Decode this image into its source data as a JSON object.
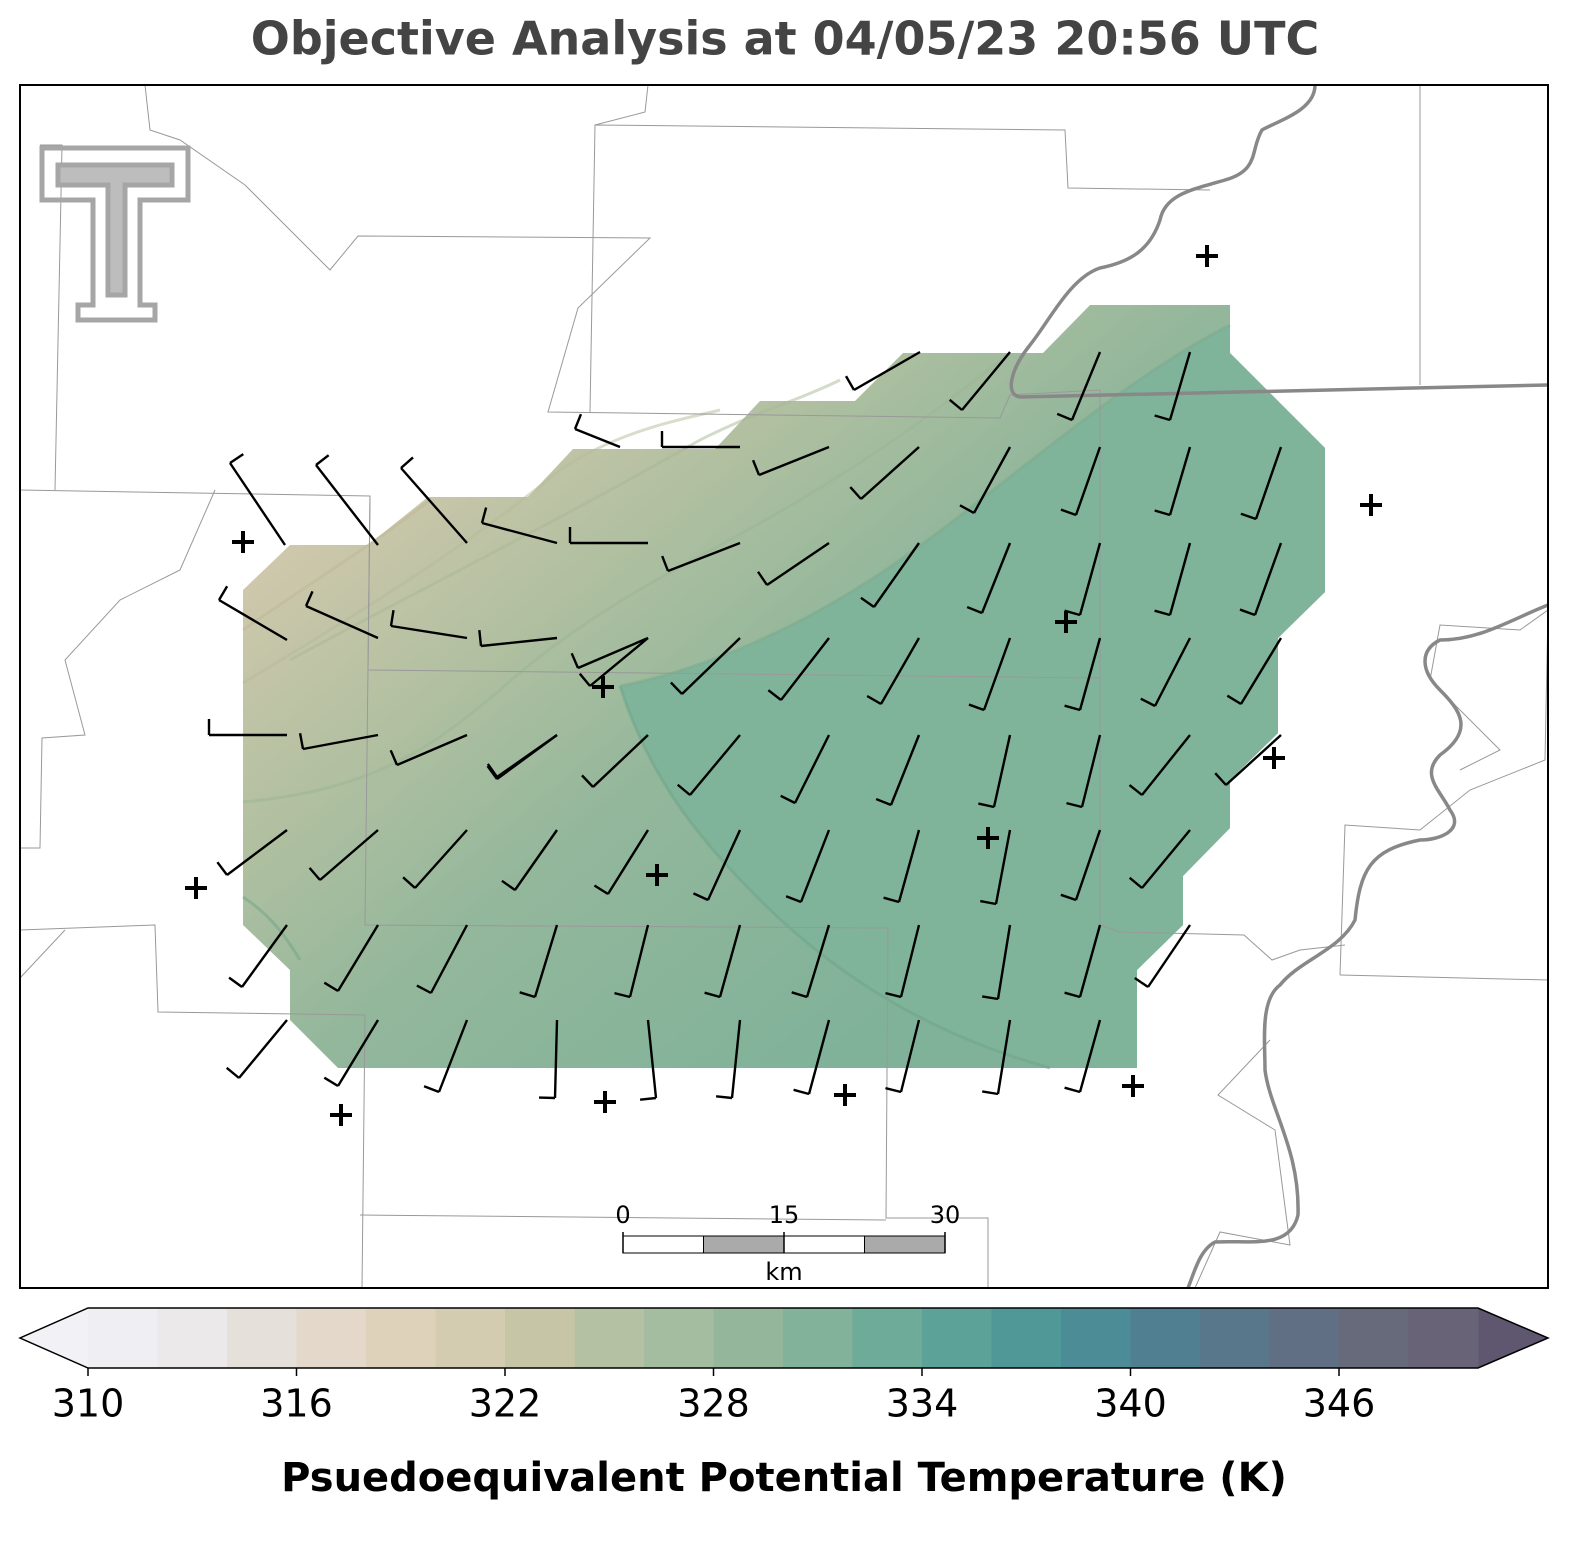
{
  "title": "Objective Analysis at 04/05/23 20:56 UTC",
  "scale_bar": {
    "unit": "km",
    "lim": [
      0,
      30
    ],
    "ticks": [
      0,
      15,
      30
    ],
    "segment": 7.5
  },
  "colorbar": {
    "label": "Psuedoequivalent Potential Temperature (K)",
    "lim": [
      310,
      350
    ],
    "ticks": [
      310,
      316,
      322,
      328,
      334,
      340,
      346
    ],
    "levels": [
      310,
      312,
      314,
      316,
      318,
      320,
      322,
      324,
      326,
      328,
      330,
      332,
      334,
      336,
      338,
      340,
      342,
      344,
      346,
      348,
      350
    ],
    "colors": [
      "#efeff3",
      "#ebe9ea",
      "#e6e0db",
      "#e3d8c9",
      "#dfd2bb",
      "#d4ccb0",
      "#c6c6a6",
      "#b5c1a3",
      "#a4bc9f",
      "#94b79b",
      "#82b29a",
      "#6eab98",
      "#5ca298",
      "#509897",
      "#4c8c96",
      "#507f91",
      "#58778b",
      "#606f83",
      "#666a7b",
      "#686376"
    ],
    "extend_colors": [
      "#f1f1f6",
      "#5f5670"
    ]
  }
}
